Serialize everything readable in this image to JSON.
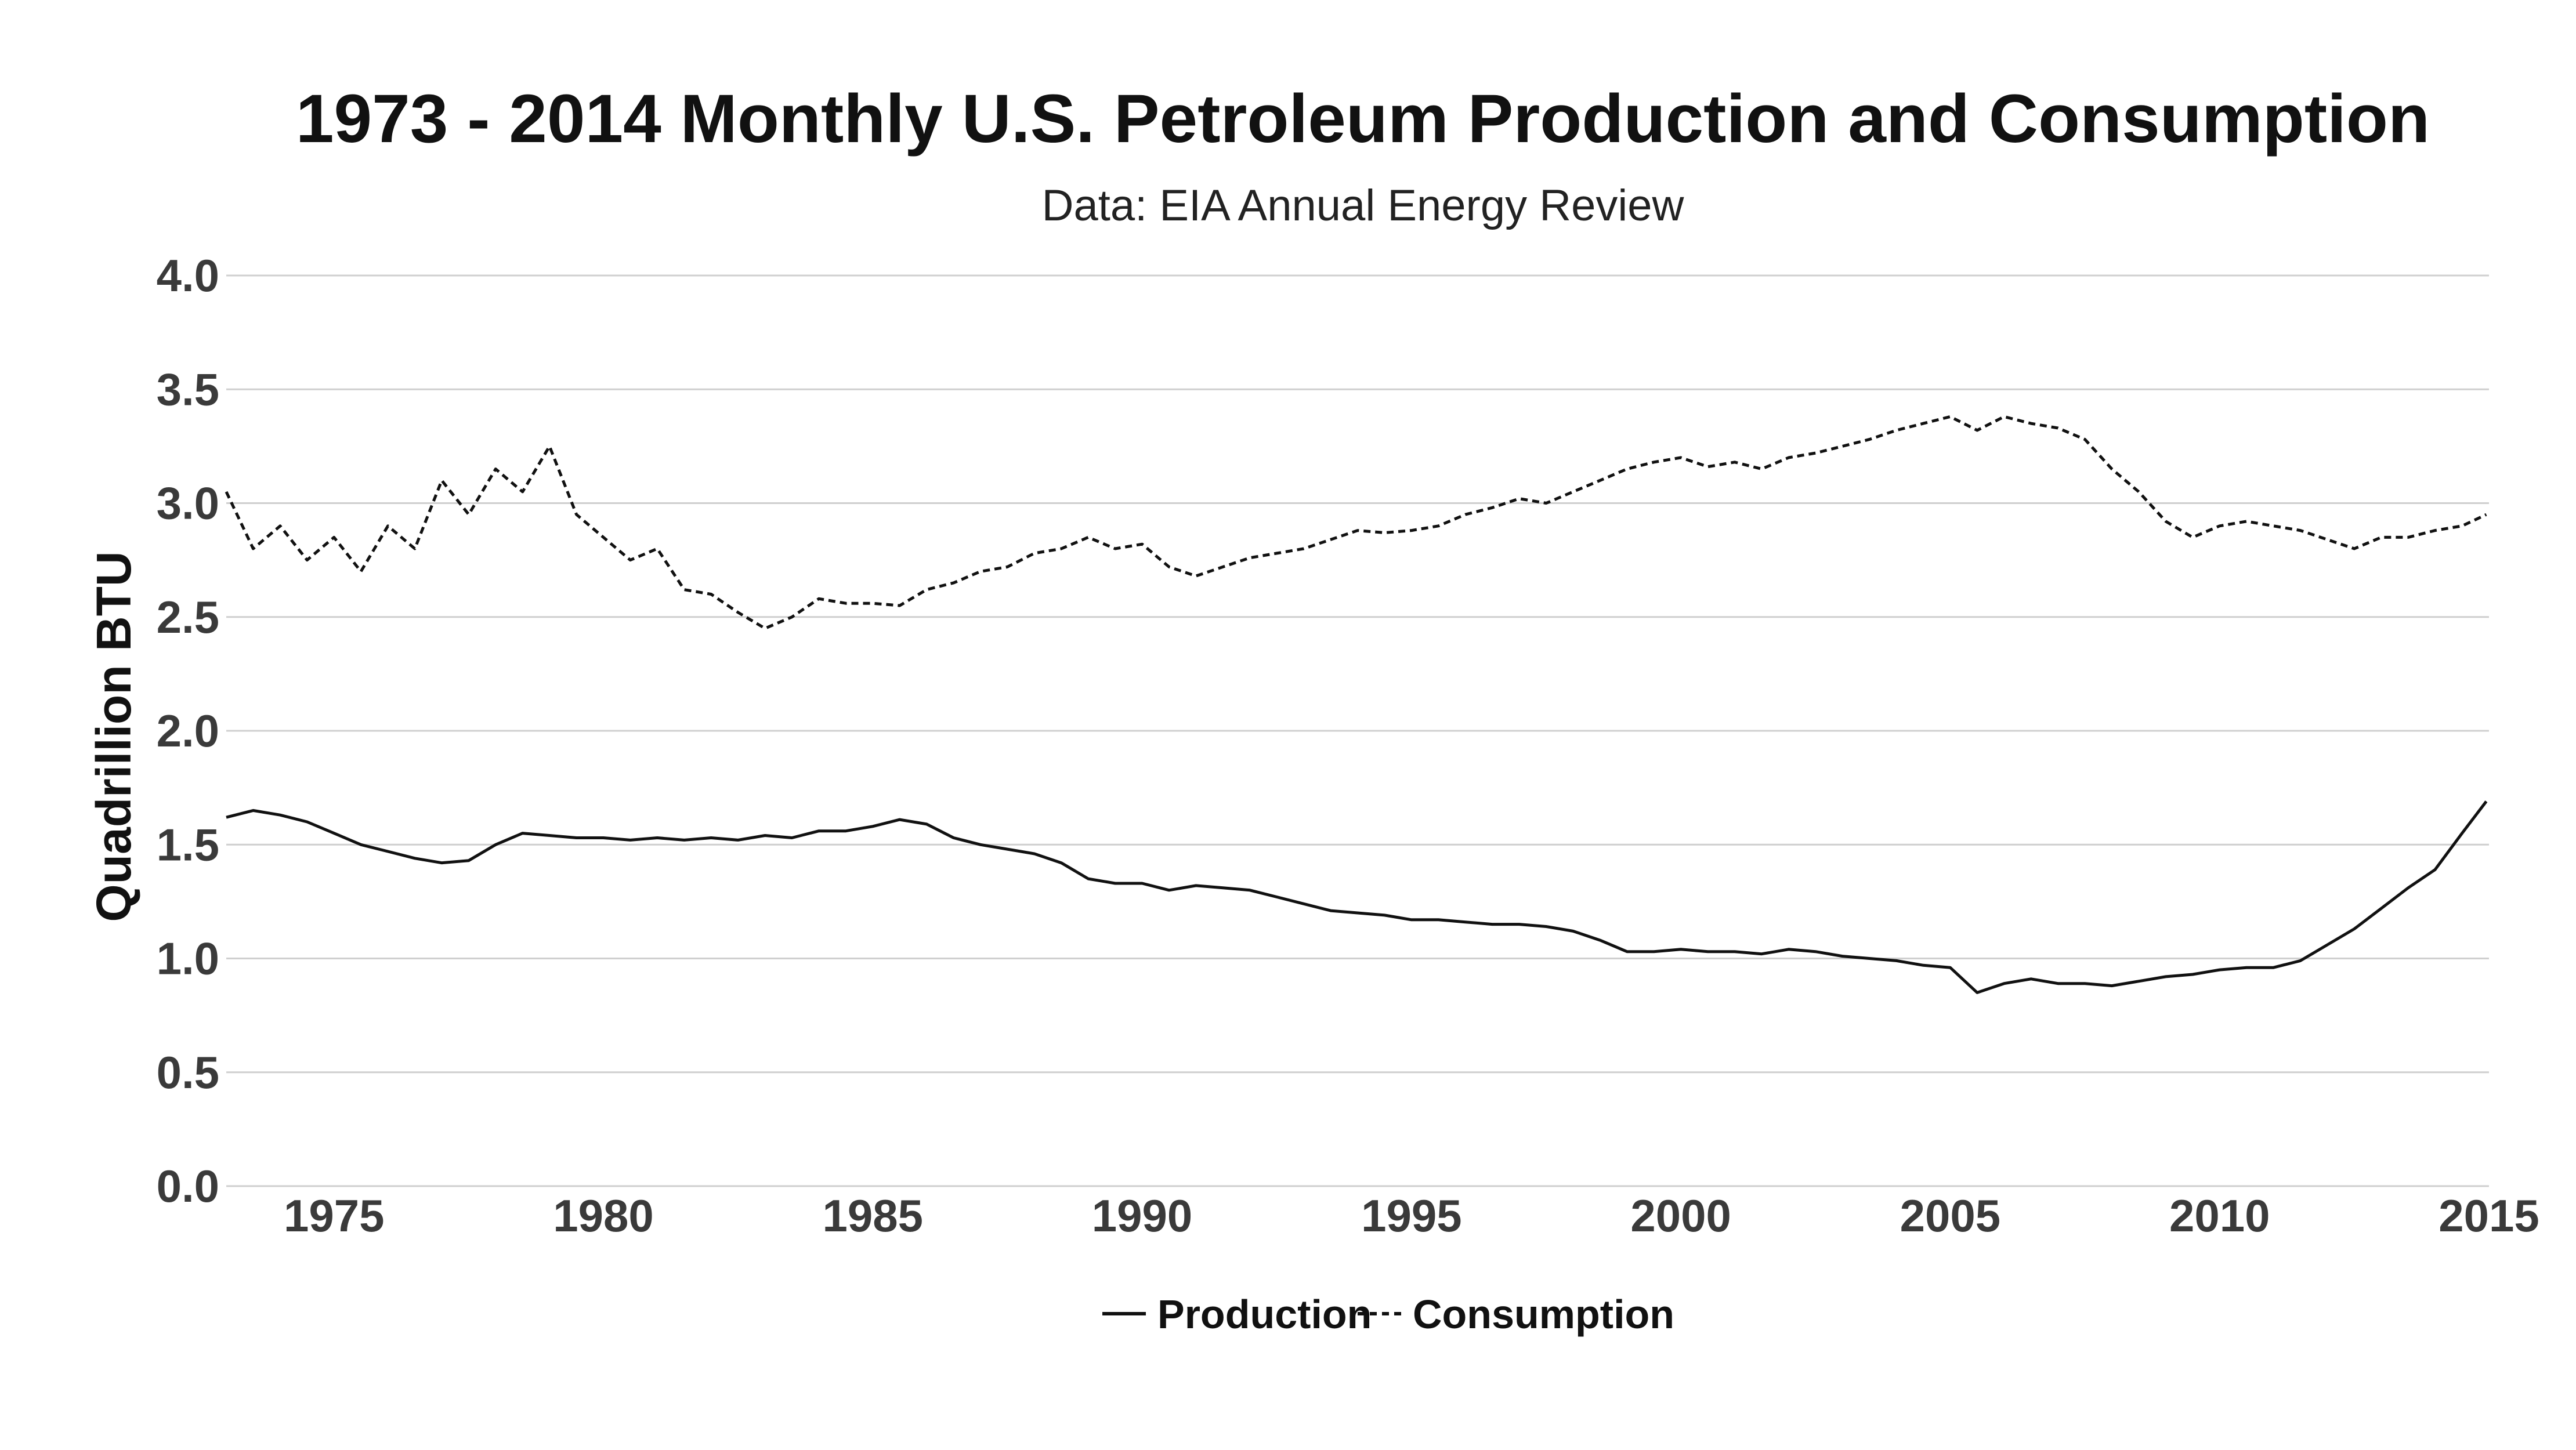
{
  "chart_data": {
    "type": "line",
    "title": "1973 - 2014 Monthly U.S. Petroleum Production and Consumption",
    "subtitle": "Data: EIA Annual Energy Review",
    "ylabel": "Quadrillion BTU",
    "xlabel": "",
    "xlim": [
      1973,
      2015
    ],
    "ylim": [
      0,
      4.0
    ],
    "x_ticks": [
      "1975",
      "1980",
      "1985",
      "1990",
      "1995",
      "2000",
      "2005",
      "2010",
      "2015"
    ],
    "y_ticks": [
      "0.0",
      "0.5",
      "1.0",
      "1.5",
      "2.0",
      "2.5",
      "3.0",
      "3.5",
      "4.0"
    ],
    "grid": true,
    "legend_position": "bottom-center",
    "colors": {
      "line": "#111111",
      "grid": "#cfcfcf",
      "tick": "#3a3a3a"
    },
    "series": [
      {
        "name": "Production",
        "style": "solid",
        "x": [
          1973.0,
          1973.5,
          1974.0,
          1974.5,
          1975.0,
          1975.5,
          1976.0,
          1976.5,
          1977.0,
          1977.5,
          1978.0,
          1978.5,
          1979.0,
          1979.5,
          1980.0,
          1980.5,
          1981.0,
          1981.5,
          1982.0,
          1982.5,
          1983.0,
          1983.5,
          1984.0,
          1984.5,
          1985.0,
          1985.5,
          1986.0,
          1986.5,
          1987.0,
          1987.5,
          1988.0,
          1988.5,
          1989.0,
          1989.5,
          1990.0,
          1990.5,
          1991.0,
          1991.5,
          1992.0,
          1992.5,
          1993.0,
          1993.5,
          1994.0,
          1994.5,
          1995.0,
          1995.5,
          1996.0,
          1996.5,
          1997.0,
          1997.5,
          1998.0,
          1998.5,
          1999.0,
          1999.5,
          2000.0,
          2000.5,
          2001.0,
          2001.5,
          2002.0,
          2002.5,
          2003.0,
          2003.5,
          2004.0,
          2004.5,
          2005.0,
          2005.5,
          2006.0,
          2006.5,
          2007.0,
          2007.5,
          2008.0,
          2008.5,
          2009.0,
          2009.5,
          2010.0,
          2010.5,
          2011.0,
          2011.5,
          2012.0,
          2012.5,
          2013.0,
          2013.5,
          2014.0,
          2014.5,
          2014.95
        ],
        "values": [
          1.62,
          1.65,
          1.63,
          1.6,
          1.55,
          1.5,
          1.47,
          1.44,
          1.42,
          1.43,
          1.5,
          1.55,
          1.54,
          1.53,
          1.53,
          1.52,
          1.53,
          1.52,
          1.53,
          1.52,
          1.54,
          1.53,
          1.56,
          1.56,
          1.58,
          1.61,
          1.59,
          1.53,
          1.5,
          1.48,
          1.46,
          1.42,
          1.35,
          1.33,
          1.33,
          1.3,
          1.32,
          1.31,
          1.3,
          1.27,
          1.24,
          1.21,
          1.2,
          1.19,
          1.17,
          1.17,
          1.16,
          1.15,
          1.15,
          1.14,
          1.12,
          1.08,
          1.03,
          1.03,
          1.04,
          1.03,
          1.03,
          1.02,
          1.04,
          1.03,
          1.01,
          1.0,
          0.99,
          0.97,
          0.96,
          0.85,
          0.89,
          0.91,
          0.89,
          0.89,
          0.88,
          0.9,
          0.92,
          0.93,
          0.95,
          0.96,
          0.96,
          0.99,
          1.06,
          1.13,
          1.22,
          1.31,
          1.39,
          1.55,
          1.69
        ]
      },
      {
        "name": "Consumption",
        "style": "dashed",
        "x": [
          1973.0,
          1973.5,
          1974.0,
          1974.5,
          1975.0,
          1975.5,
          1976.0,
          1976.5,
          1977.0,
          1977.5,
          1978.0,
          1978.5,
          1979.0,
          1979.5,
          1980.0,
          1980.5,
          1981.0,
          1981.5,
          1982.0,
          1982.5,
          1983.0,
          1983.5,
          1984.0,
          1984.5,
          1985.0,
          1985.5,
          1986.0,
          1986.5,
          1987.0,
          1987.5,
          1988.0,
          1988.5,
          1989.0,
          1989.5,
          1990.0,
          1990.5,
          1991.0,
          1991.5,
          1992.0,
          1992.5,
          1993.0,
          1993.5,
          1994.0,
          1994.5,
          1995.0,
          1995.5,
          1996.0,
          1996.5,
          1997.0,
          1997.5,
          1998.0,
          1998.5,
          1999.0,
          1999.5,
          2000.0,
          2000.5,
          2001.0,
          2001.5,
          2002.0,
          2002.5,
          2003.0,
          2003.5,
          2004.0,
          2004.5,
          2005.0,
          2005.5,
          2006.0,
          2006.5,
          2007.0,
          2007.5,
          2008.0,
          2008.5,
          2009.0,
          2009.5,
          2010.0,
          2010.5,
          2011.0,
          2011.5,
          2012.0,
          2012.5,
          2013.0,
          2013.5,
          2014.0,
          2014.5,
          2014.95
        ],
        "values": [
          3.05,
          2.8,
          2.9,
          2.75,
          2.85,
          2.7,
          2.9,
          2.8,
          3.1,
          2.95,
          3.15,
          3.05,
          3.25,
          2.95,
          2.85,
          2.75,
          2.8,
          2.62,
          2.6,
          2.52,
          2.45,
          2.5,
          2.58,
          2.56,
          2.56,
          2.55,
          2.62,
          2.65,
          2.7,
          2.72,
          2.78,
          2.8,
          2.85,
          2.8,
          2.82,
          2.72,
          2.68,
          2.72,
          2.76,
          2.78,
          2.8,
          2.84,
          2.88,
          2.87,
          2.88,
          2.9,
          2.95,
          2.98,
          3.02,
          3.0,
          3.05,
          3.1,
          3.15,
          3.18,
          3.2,
          3.16,
          3.18,
          3.15,
          3.2,
          3.22,
          3.25,
          3.28,
          3.32,
          3.35,
          3.38,
          3.32,
          3.38,
          3.35,
          3.33,
          3.28,
          3.15,
          3.05,
          2.92,
          2.85,
          2.9,
          2.92,
          2.9,
          2.88,
          2.84,
          2.8,
          2.85,
          2.85,
          2.88,
          2.9,
          2.95
        ]
      }
    ]
  }
}
